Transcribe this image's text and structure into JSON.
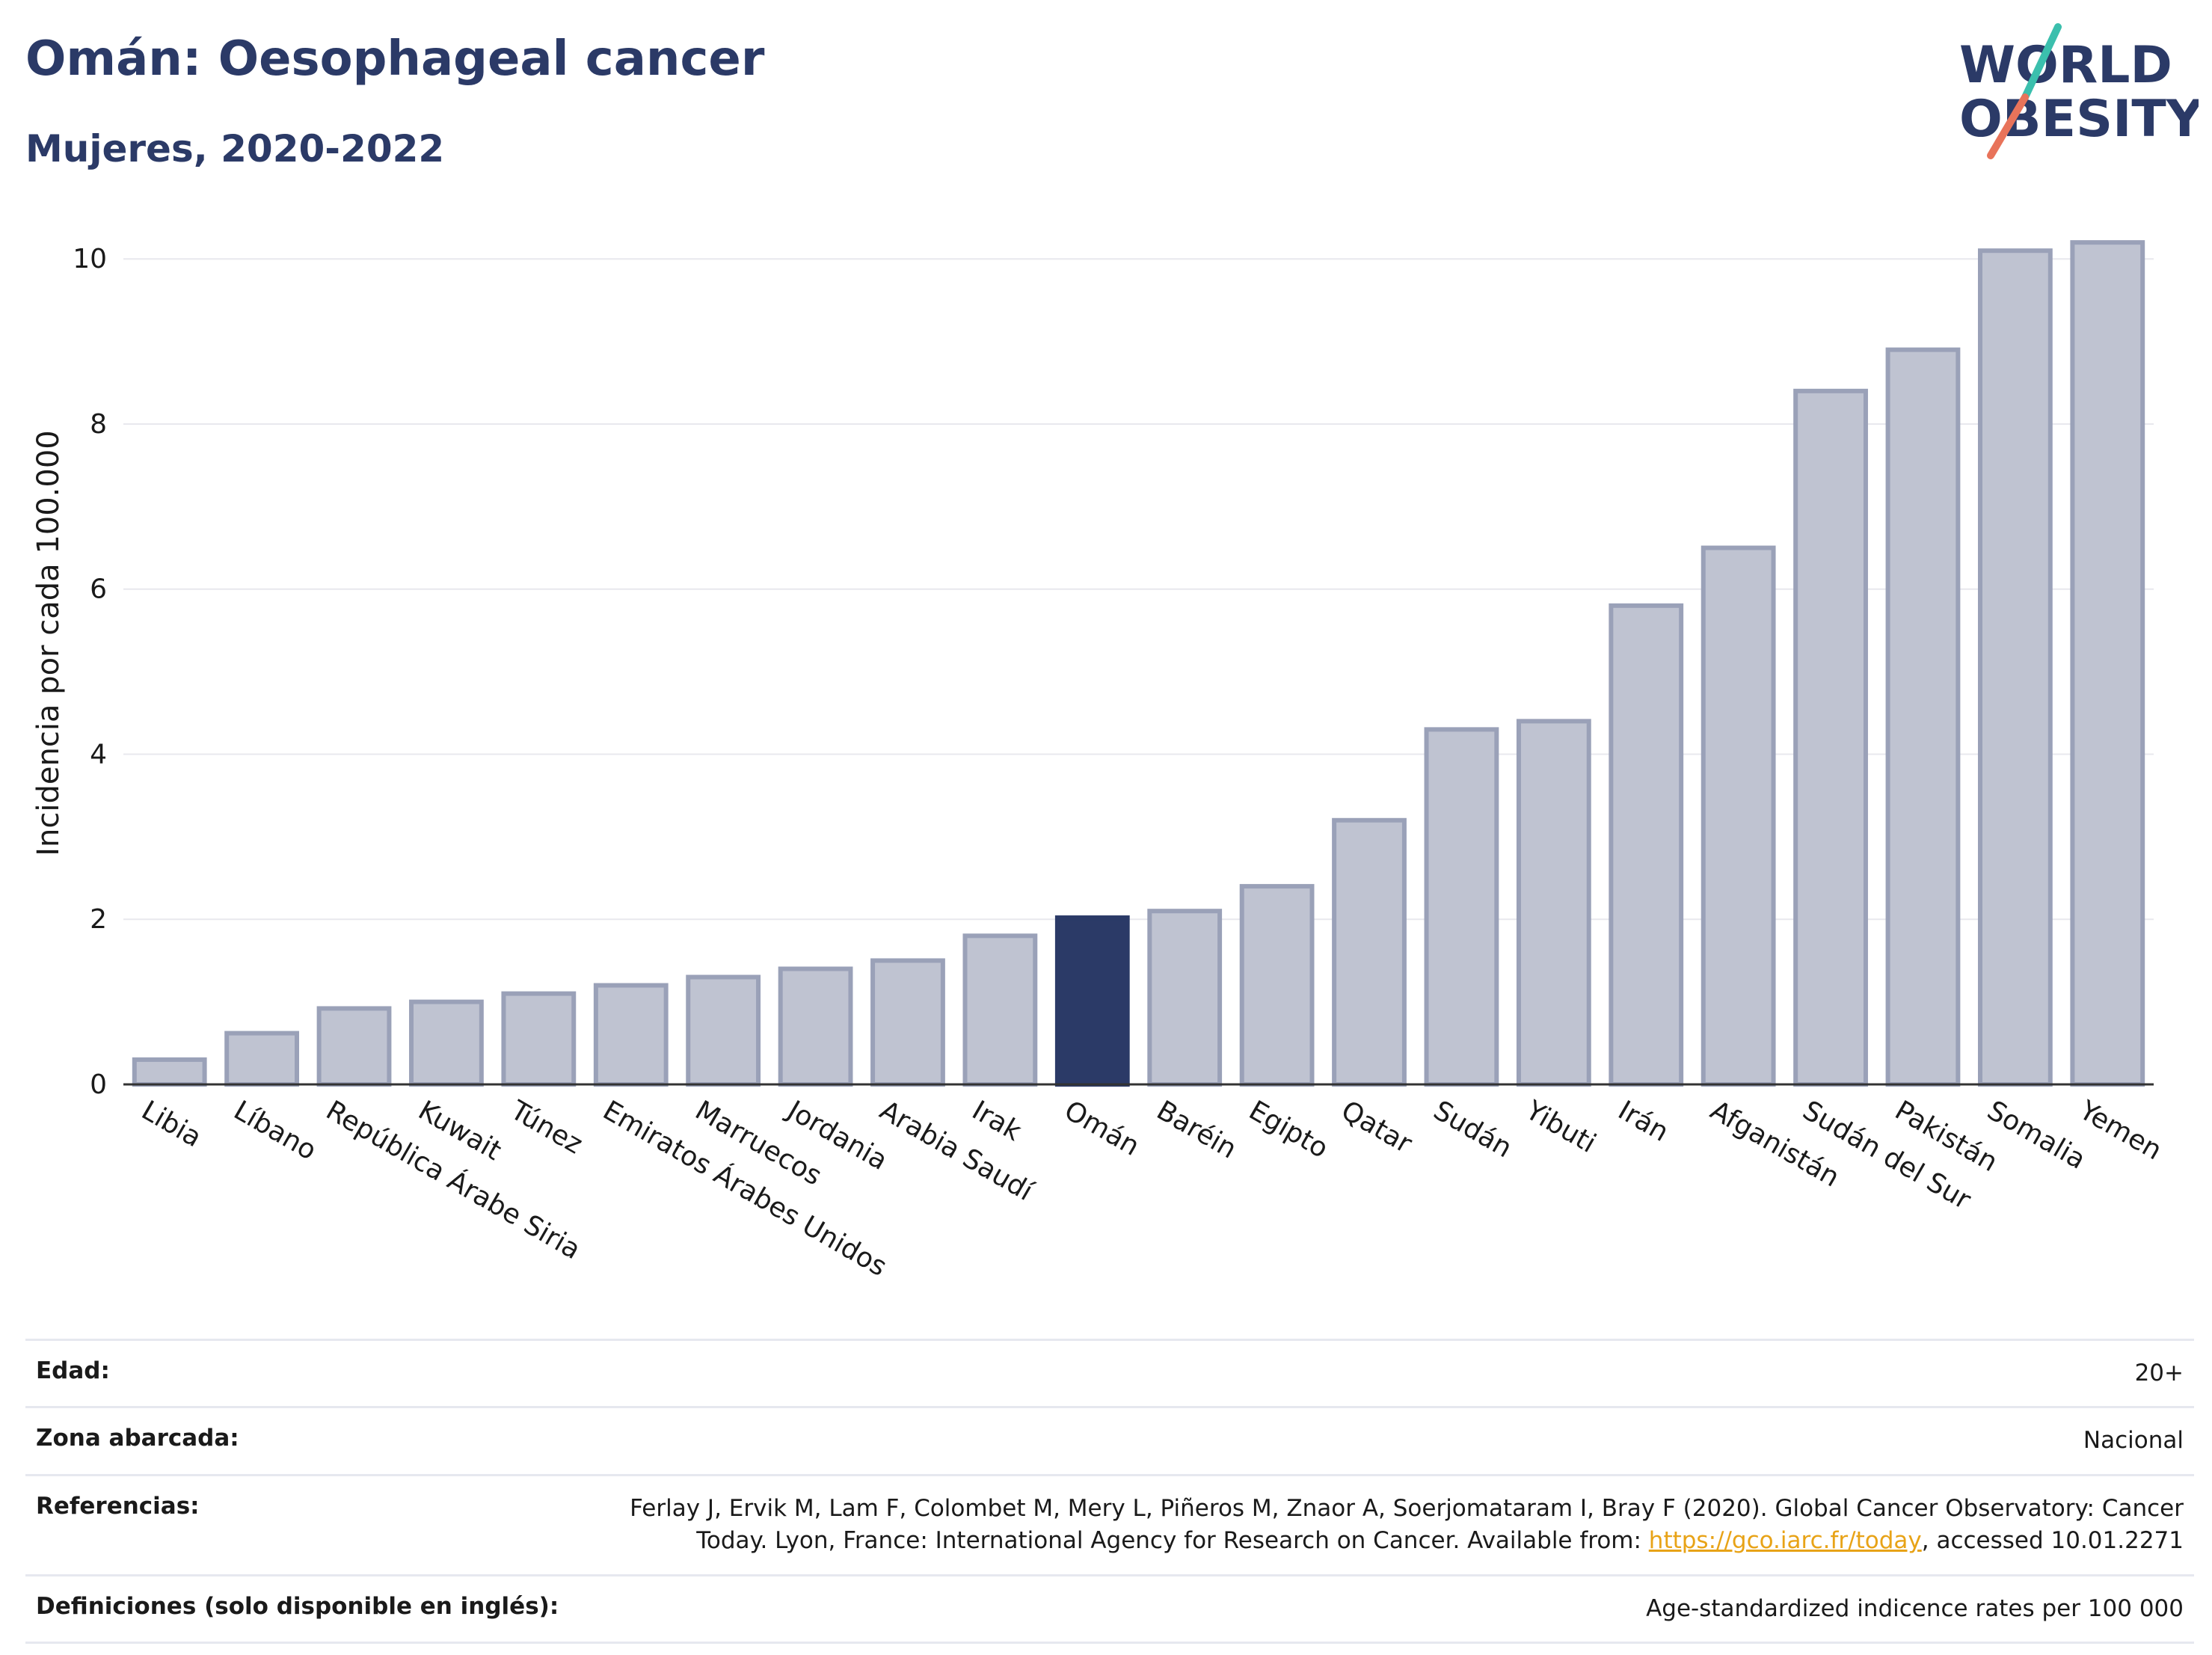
{
  "header": {
    "title": "Omán: Oesophageal cancer",
    "subtitle": "Mujeres, 2020-2022"
  },
  "logo": {
    "line1": "WORLD",
    "line2": "OBESITY",
    "accent_colors": [
      "#3bbfad",
      "#e8735a"
    ]
  },
  "colors": {
    "bar": "#bfc3d1",
    "bar_stroke": "#9aa1b8",
    "highlight": "#2b3a67",
    "grid": "#e8e8ee",
    "axis": "#333333"
  },
  "chart_data": {
    "type": "bar",
    "title": "Omán: Oesophageal cancer",
    "subtitle": "Mujeres, 2020-2022",
    "xlabel": "",
    "ylabel": "Incidencia por cada 100.000",
    "ylim": [
      0,
      10.6
    ],
    "yticks": [
      0,
      2,
      4,
      6,
      8,
      10
    ],
    "grid": true,
    "highlight_category": "Omán",
    "categories": [
      "Libia",
      "Líbano",
      "República Árabe Siria",
      "Kuwait",
      "Túnez",
      "Emiratos Árabes Unidos",
      "Marruecos",
      "Jordania",
      "Arabia Saudí",
      "Irak",
      "Omán",
      "Baréin",
      "Egipto",
      "Qatar",
      "Sudán",
      "Yibuti",
      "Irán",
      "Afganistán",
      "Sudán del Sur",
      "Pakistán",
      "Somalia",
      "Yemen"
    ],
    "values": [
      0.3,
      0.62,
      0.92,
      1.0,
      1.1,
      1.2,
      1.3,
      1.4,
      1.5,
      1.8,
      2.02,
      2.1,
      2.4,
      3.2,
      4.3,
      4.4,
      5.8,
      6.5,
      8.4,
      8.9,
      10.1,
      10.2
    ]
  },
  "info": {
    "rows": [
      {
        "key": "Edad:",
        "value": "20+"
      },
      {
        "key": "Zona abarcada:",
        "value": "Nacional"
      },
      {
        "key": "Referencias:",
        "value_before": "Ferlay J, Ervik M, Lam F, Colombet M, Mery L, Piñeros M, Znaor A, Soerjomataram I, Bray F (2020). Global Cancer Observatory: Cancer Today. Lyon, France: International Agency for Research on Cancer. Available from: ",
        "link": "https://gco.iarc.fr/today",
        "value_after": ", accessed 10.01.2271"
      },
      {
        "key": "Definiciones (solo disponible en inglés):",
        "value": "Age-standardized indicence rates per 100 000"
      }
    ]
  }
}
